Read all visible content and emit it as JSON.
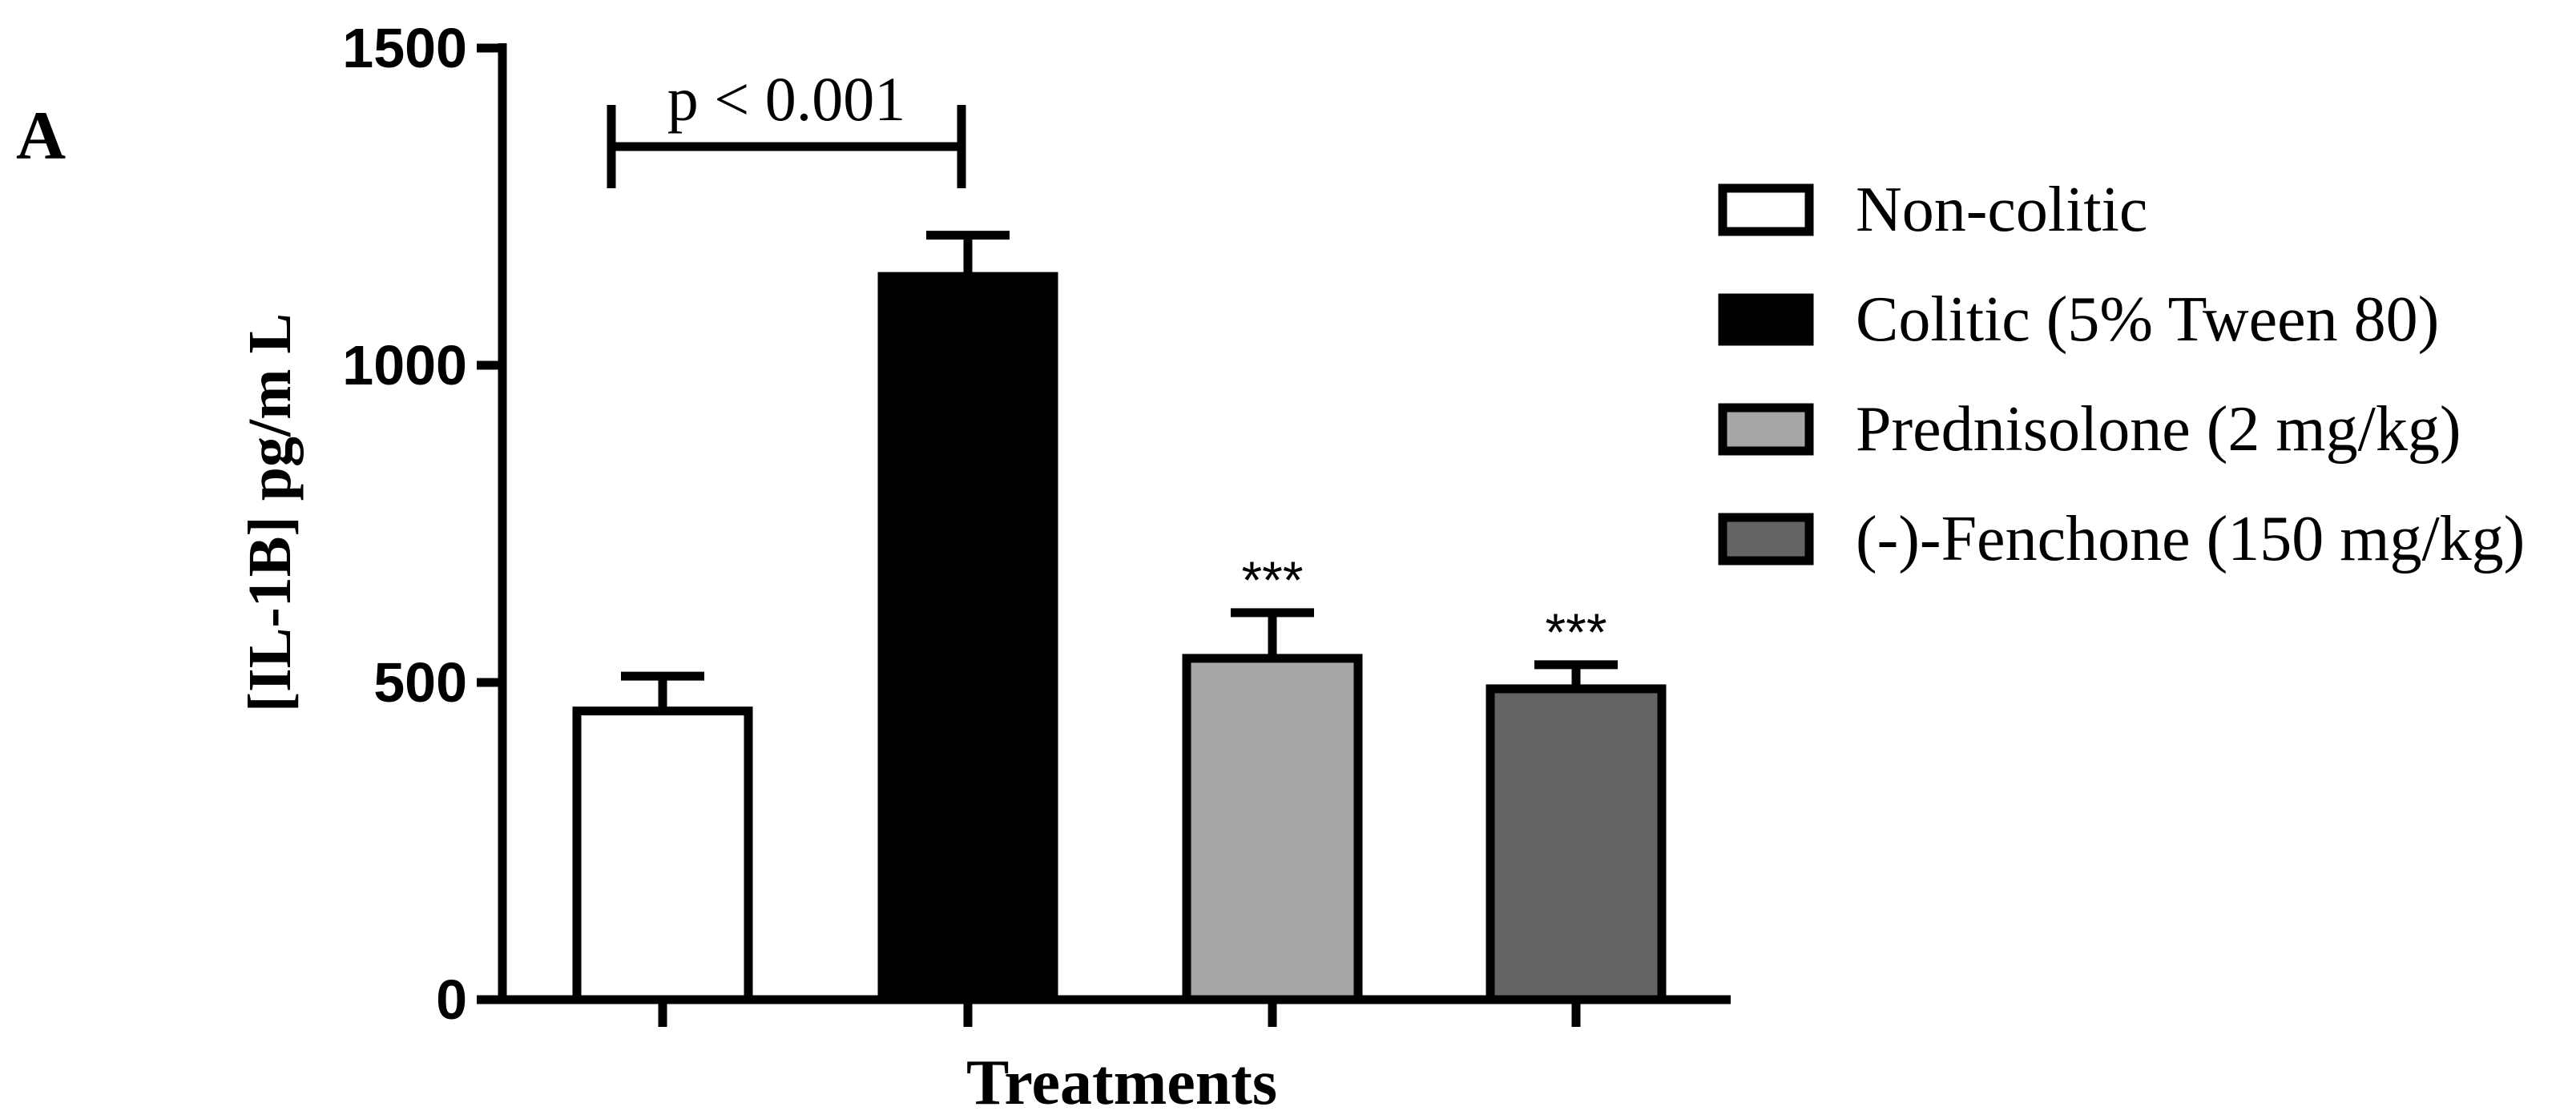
{
  "panel_label": "A",
  "chart_data": {
    "type": "bar",
    "title": "",
    "xlabel": "Treatments",
    "ylabel": "[IL-1B] pg/m L",
    "ylim": [
      0,
      1500
    ],
    "yticks": [
      0,
      500,
      1000,
      1500
    ],
    "categories": [
      "Non-colitic",
      "Colitic (5% Tween 80)",
      "Prednisolone (2 mg/kg)",
      "(-)-Fenchone (150 mg/kg)"
    ],
    "values": [
      455,
      1140,
      538,
      490
    ],
    "errors": [
      55,
      65,
      72,
      38
    ],
    "colors": [
      "#ffffff",
      "#000000",
      "#a6a6a8",
      "#646464"
    ],
    "significance": [
      "",
      "",
      "***",
      "***"
    ],
    "comparison": {
      "label": "p < 0.001",
      "from": 0,
      "to": 1
    },
    "legend": {
      "position": "right",
      "entries": [
        "Non-colitic",
        "Colitic (5% Tween 80)",
        "Prednisolone (2 mg/kg)",
        "(-)-Fenchone (150 mg/kg)"
      ]
    },
    "grid": false
  }
}
